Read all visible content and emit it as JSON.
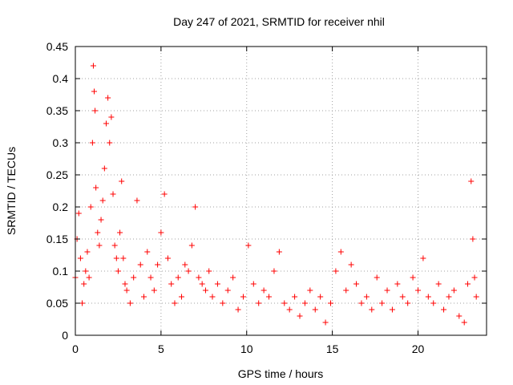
{
  "chart_data": {
    "type": "scatter",
    "title": "Day 247 of 2021, SRMTID for receiver nhil",
    "xlabel": "GPS time / hours",
    "ylabel": "SRMTID / TECUs",
    "xlim": [
      0,
      24
    ],
    "ylim": [
      0,
      0.45
    ],
    "xticks": [
      0,
      5,
      10,
      15,
      20
    ],
    "yticks": [
      0,
      0.05,
      0.1,
      0.15,
      0.2,
      0.25,
      0.3,
      0.35,
      0.4,
      0.45
    ],
    "xtick_labels": [
      "0",
      "5",
      "10",
      "15",
      "20"
    ],
    "ytick_labels": [
      "0",
      "0.05",
      "0.1",
      "0.15",
      "0.2",
      "0.25",
      "0.3",
      "0.35",
      "0.4",
      "0.45"
    ],
    "grid": true,
    "marker": "+",
    "color": "#ff0000",
    "series": [
      {
        "name": "SRMTID",
        "x": [
          0.0,
          0.1,
          0.2,
          0.3,
          0.4,
          0.5,
          0.6,
          0.7,
          0.8,
          0.9,
          1.0,
          1.05,
          1.1,
          1.15,
          1.2,
          1.3,
          1.4,
          1.5,
          1.6,
          1.7,
          1.8,
          1.9,
          2.0,
          2.1,
          2.2,
          2.3,
          2.4,
          2.5,
          2.6,
          2.7,
          2.8,
          2.9,
          3.0,
          3.2,
          3.4,
          3.6,
          3.8,
          4.0,
          4.2,
          4.4,
          4.6,
          4.8,
          5.0,
          5.2,
          5.4,
          5.6,
          5.8,
          6.0,
          6.2,
          6.4,
          6.6,
          6.8,
          7.0,
          7.2,
          7.4,
          7.6,
          7.8,
          8.0,
          8.3,
          8.6,
          8.9,
          9.2,
          9.5,
          9.8,
          10.1,
          10.4,
          10.7,
          11.0,
          11.3,
          11.6,
          11.9,
          12.2,
          12.5,
          12.8,
          13.1,
          13.4,
          13.7,
          14.0,
          14.3,
          14.6,
          14.9,
          15.2,
          15.5,
          15.8,
          16.1,
          16.4,
          16.7,
          17.0,
          17.3,
          17.6,
          17.9,
          18.2,
          18.5,
          18.8,
          19.1,
          19.4,
          19.7,
          20.0,
          20.3,
          20.6,
          20.9,
          21.2,
          21.5,
          21.8,
          22.1,
          22.4,
          22.7,
          22.9,
          23.1,
          23.2,
          23.3,
          23.4
        ],
        "y": [
          0.09,
          0.15,
          0.19,
          0.12,
          0.05,
          0.08,
          0.1,
          0.13,
          0.09,
          0.2,
          0.3,
          0.42,
          0.38,
          0.35,
          0.23,
          0.16,
          0.14,
          0.18,
          0.21,
          0.26,
          0.33,
          0.37,
          0.3,
          0.34,
          0.22,
          0.14,
          0.12,
          0.1,
          0.16,
          0.24,
          0.12,
          0.08,
          0.07,
          0.05,
          0.09,
          0.21,
          0.11,
          0.06,
          0.13,
          0.09,
          0.07,
          0.11,
          0.16,
          0.22,
          0.12,
          0.08,
          0.05,
          0.09,
          0.06,
          0.11,
          0.1,
          0.14,
          0.2,
          0.09,
          0.08,
          0.07,
          0.1,
          0.06,
          0.08,
          0.05,
          0.07,
          0.09,
          0.04,
          0.06,
          0.14,
          0.08,
          0.05,
          0.07,
          0.06,
          0.1,
          0.13,
          0.05,
          0.04,
          0.06,
          0.03,
          0.05,
          0.07,
          0.04,
          0.06,
          0.02,
          0.05,
          0.1,
          0.13,
          0.07,
          0.11,
          0.08,
          0.05,
          0.06,
          0.04,
          0.09,
          0.05,
          0.07,
          0.04,
          0.08,
          0.06,
          0.05,
          0.09,
          0.07,
          0.12,
          0.06,
          0.05,
          0.08,
          0.04,
          0.06,
          0.07,
          0.03,
          0.02,
          0.08,
          0.24,
          0.15,
          0.09,
          0.06
        ]
      }
    ]
  }
}
